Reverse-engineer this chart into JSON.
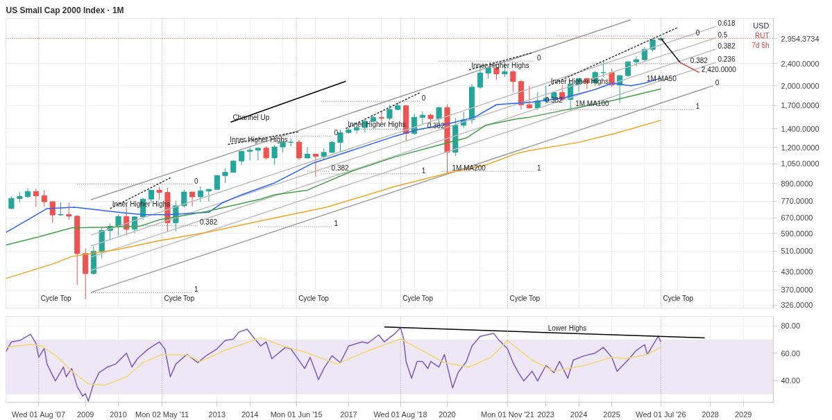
{
  "chart_data": [
    {
      "type": "candlestick",
      "title": "US Small Cap 2000 Index · 1M",
      "ylabel": "USD",
      "log": true,
      "grid": true,
      "tick_labels": "y",
      "xlim": [
        "2006-08",
        "2029-12"
      ],
      "xticks": [
        "2009",
        "2010",
        "2011",
        "2012",
        "2013",
        "2014",
        "2015",
        "2016",
        "2017",
        "2018",
        "2019",
        "2020",
        "2021",
        "2022",
        "2023",
        "2024",
        "2025",
        "2026",
        "2027",
        "2028",
        "2029"
      ],
      "ylim": [
        318,
        3490
      ],
      "yticks": [
        {
          "value": 326,
          "label": "326.0000"
        },
        {
          "value": 370,
          "label": "370.0000"
        },
        {
          "value": 430,
          "label": "430.0000"
        },
        {
          "value": 510,
          "label": "510.0000"
        },
        {
          "value": 590,
          "label": "590.0000"
        },
        {
          "value": 670,
          "label": "670.0000"
        },
        {
          "value": 770,
          "label": "770.0000"
        },
        {
          "value": 890,
          "label": "890.0000"
        },
        {
          "value": 1050,
          "label": "1,050.0000"
        },
        {
          "value": 1200,
          "label": "1,200.0000"
        },
        {
          "value": 1400,
          "label": "1,400.0000"
        },
        {
          "value": 1700,
          "label": "1,700.0000"
        },
        {
          "value": 2000,
          "label": "2,000.0000"
        },
        {
          "value": 2400,
          "label": "2,400.0000"
        }
      ],
      "x": [
        "2006-10",
        "2007-01",
        "2007-04",
        "2007-07",
        "2007-10",
        "2008-01",
        "2008-04",
        "2008-07",
        "2008-10",
        "2009-01",
        "2009-04",
        "2009-07",
        "2009-10",
        "2010-01",
        "2010-04",
        "2010-07",
        "2010-10",
        "2011-01",
        "2011-04",
        "2011-07",
        "2011-10",
        "2012-01",
        "2012-04",
        "2012-07",
        "2012-10",
        "2013-01",
        "2013-04",
        "2013-07",
        "2013-10",
        "2014-01",
        "2014-04",
        "2014-07",
        "2014-10",
        "2015-01",
        "2015-04",
        "2015-07",
        "2015-10",
        "2016-01",
        "2016-04",
        "2016-07",
        "2016-10",
        "2017-01",
        "2017-04",
        "2017-07",
        "2017-10",
        "2018-01",
        "2018-04",
        "2018-07",
        "2018-10",
        "2019-01",
        "2019-04",
        "2019-07",
        "2019-10",
        "2020-01",
        "2020-04",
        "2020-07",
        "2020-10",
        "2021-01",
        "2021-04",
        "2021-07",
        "2021-10",
        "2022-01",
        "2022-04",
        "2022-07",
        "2022-10",
        "2023-01",
        "2023-04",
        "2023-07",
        "2023-10",
        "2024-01",
        "2024-04",
        "2024-07",
        "2024-10",
        "2025-01",
        "2025-04",
        "2025-07",
        "2025-10",
        "2026-01",
        "2026-04",
        "2026-07"
      ],
      "ohlc": [
        [
          725,
          800,
          720,
          787
        ],
        [
          787,
          829,
          760,
          800
        ],
        [
          800,
          856,
          790,
          834
        ],
        [
          834,
          855,
          734,
          805
        ],
        [
          805,
          845,
          735,
          766
        ],
        [
          766,
          770,
          643,
          687
        ],
        [
          687,
          763,
          685,
          689
        ],
        [
          689,
          760,
          660,
          680
        ],
        [
          680,
          680,
          385,
          499
        ],
        [
          499,
          520,
          343,
          423
        ],
        [
          423,
          530,
          420,
          508
        ],
        [
          508,
          620,
          480,
          604
        ],
        [
          604,
          640,
          560,
          625
        ],
        [
          625,
          690,
          580,
          678
        ],
        [
          678,
          745,
          580,
          610
        ],
        [
          610,
          680,
          590,
          676
        ],
        [
          676,
          790,
          660,
          783
        ],
        [
          783,
          845,
          760,
          843
        ],
        [
          843,
          868,
          780,
          827
        ],
        [
          827,
          860,
          600,
          644
        ],
        [
          644,
          770,
          601,
          741
        ],
        [
          741,
          846,
          730,
          830
        ],
        [
          830,
          830,
          737,
          798
        ],
        [
          798,
          869,
          763,
          837
        ],
        [
          837,
          850,
          767,
          849
        ],
        [
          849,
          953,
          849,
          951
        ],
        [
          951,
          1010,
          895,
          977
        ],
        [
          977,
          1080,
          975,
          1073
        ],
        [
          1073,
          1165,
          1040,
          1163
        ],
        [
          1163,
          1213,
          1080,
          1173
        ],
        [
          1173,
          1195,
          1080,
          1193
        ],
        [
          1193,
          1213,
          1085,
          1101
        ],
        [
          1101,
          1221,
          1040,
          1205
        ],
        [
          1205,
          1266,
          1150,
          1253
        ],
        [
          1253,
          1296,
          1210,
          1254
        ],
        [
          1254,
          1275,
          1080,
          1100
        ],
        [
          1100,
          1205,
          1100,
          1136
        ],
        [
          1136,
          1140,
          943,
          1114
        ],
        [
          1114,
          1190,
          1080,
          1152
        ],
        [
          1152,
          1265,
          1150,
          1252
        ],
        [
          1252,
          1392,
          1156,
          1357
        ],
        [
          1357,
          1414,
          1345,
          1386
        ],
        [
          1386,
          1432,
          1345,
          1415
        ],
        [
          1415,
          1514,
          1356,
          1490
        ],
        [
          1490,
          1565,
          1480,
          1536
        ],
        [
          1536,
          1618,
          1464,
          1529
        ],
        [
          1529,
          1708,
          1500,
          1643
        ],
        [
          1643,
          1742,
          1630,
          1696
        ],
        [
          1696,
          1708,
          1267,
          1348
        ],
        [
          1348,
          1590,
          1330,
          1540
        ],
        [
          1540,
          1618,
          1450,
          1567
        ],
        [
          1567,
          1590,
          1450,
          1523
        ],
        [
          1523,
          1680,
          1460,
          1668
        ],
        [
          1668,
          1715,
          966,
          1153
        ],
        [
          1153,
          1532,
          1120,
          1441
        ],
        [
          1441,
          1606,
          1410,
          1508
        ],
        [
          1508,
          2030,
          1460,
          1975
        ],
        [
          1975,
          2360,
          1950,
          2221
        ],
        [
          2221,
          2360,
          2120,
          2311
        ],
        [
          2311,
          2330,
          2100,
          2204
        ],
        [
          2204,
          2458,
          2150,
          2245
        ],
        [
          2245,
          2272,
          1900,
          2070
        ],
        [
          2070,
          2100,
          1641,
          1708
        ],
        [
          1708,
          2000,
          1650,
          1665
        ],
        [
          1665,
          1900,
          1640,
          1761
        ],
        [
          1761,
          2001,
          1718,
          1802
        ],
        [
          1802,
          1900,
          1720,
          1889
        ],
        [
          1889,
          2013,
          1760,
          1785
        ],
        [
          1785,
          2087,
          1633,
          2027
        ],
        [
          2027,
          2124,
          1900,
          2124
        ],
        [
          2124,
          2125,
          1942,
          2048
        ],
        [
          2048,
          2264,
          1995,
          2230
        ],
        [
          2230,
          2466,
          2150,
          2230
        ],
        [
          2230,
          2300,
          1990,
          2011
        ],
        [
          2011,
          2180,
          1732,
          2175
        ],
        [
          2175,
          2450,
          2150,
          2437
        ],
        [
          2437,
          2550,
          2350,
          2480
        ],
        [
          2480,
          2750,
          2450,
          2700
        ],
        [
          2700,
          2960,
          2650,
          2920
        ],
        [
          2920,
          2980,
          2900,
          2954
        ]
      ],
      "series": [
        {
          "type": "line",
          "color": "#9e9e9e",
          "x": [
            "2009-03",
            "2025-08"
          ],
          "values": [
            779,
            3450
          ]
        },
        {
          "type": "line",
          "color": "#9e9e9e",
          "x": [
            "2009-03",
            "2028-02"
          ],
          "values": [
            362,
            2000
          ]
        },
        {
          "type": "line",
          "color": "#bdbdbd",
          "x": [
            "2009-03",
            "2028-03"
          ],
          "values": [
            434,
            2425
          ]
        },
        {
          "type": "line",
          "color": "#bdbdbd",
          "x": [
            "2009-03",
            "2028-03"
          ],
          "values": [
            485,
            2705
          ]
        },
        {
          "type": "line",
          "color": "#bdbdbd",
          "x": [
            "2009-03",
            "2028-03"
          ],
          "values": [
            531,
            2971
          ]
        },
        {
          "type": "line",
          "color": "#bdbdbd",
          "x": [
            "2009-03",
            "2028-03"
          ],
          "values": [
            581,
            3262
          ]
        },
        {
          "type": "line",
          "color": "#9e9e9e",
          "line_style": "dotted",
          "x": [
            "2008-10",
            "2012-04"
          ],
          "values": [
            887,
            887
          ]
        },
        {
          "type": "line",
          "color": "#9e9e9e",
          "line_style": "dotted",
          "x": [
            "2010-01",
            "2012-06"
          ],
          "values": [
            629,
            629
          ]
        },
        {
          "type": "line",
          "color": "#9e9e9e",
          "line_style": "dotted",
          "x": [
            "2009-03",
            "2012-04"
          ],
          "values": [
            362,
            362
          ]
        },
        {
          "type": "line",
          "color": "#9e9e9e",
          "line_style": "dotted",
          "x": [
            "2014-05",
            "2016-07"
          ],
          "values": [
            1318,
            1318
          ]
        },
        {
          "type": "line",
          "color": "#9e9e9e",
          "line_style": "dotted",
          "x": [
            "2015-10",
            "2016-06"
          ],
          "values": [
            985,
            985
          ]
        },
        {
          "type": "line",
          "color": "#9e9e9e",
          "line_style": "dotted",
          "x": [
            "2014-04",
            "2016-07"
          ],
          "values": [
            623,
            623
          ]
        },
        {
          "type": "line",
          "color": "#9e9e9e",
          "line_style": "dotted",
          "x": [
            "2016-03",
            "2019-03"
          ],
          "values": [
            1756,
            1756
          ]
        },
        {
          "type": "line",
          "color": "#9e9e9e",
          "line_style": "dotted",
          "x": [
            "2017-04",
            "2019-05"
          ],
          "values": [
            1396,
            1396
          ]
        },
        {
          "type": "line",
          "color": "#9e9e9e",
          "line_style": "dotted",
          "x": [
            "2016-03",
            "2019-03"
          ],
          "values": [
            965,
            965
          ]
        },
        {
          "type": "line",
          "color": "#9e9e9e",
          "line_style": "dotted",
          "x": [
            "2019-10",
            "2022-09"
          ],
          "values": [
            2451,
            2451
          ]
        },
        {
          "type": "line",
          "color": "#9e9e9e",
          "line_style": "dotted",
          "x": [
            "2021-11",
            "2022-12"
          ],
          "values": [
            1730,
            1730
          ]
        },
        {
          "type": "line",
          "color": "#9e9e9e",
          "line_style": "dotted",
          "x": [
            "2019-11",
            "2022-09"
          ],
          "values": [
            985,
            985
          ]
        },
        {
          "type": "line",
          "color": "#9e9e9e",
          "line_style": "dotted",
          "x": [
            "2023-05",
            "2027-07"
          ],
          "values": [
            3017,
            3017
          ]
        },
        {
          "type": "line",
          "color": "#9e9e9e",
          "line_style": "dotted",
          "x": [
            "2024-06",
            "2027-05"
          ],
          "values": [
            2400,
            2400
          ]
        },
        {
          "type": "line",
          "color": "#9e9e9e",
          "line_style": "dotted",
          "x": [
            "2023-03",
            "2027-07"
          ],
          "values": [
            1641,
            1641
          ]
        },
        {
          "type": "line",
          "color": "#333333",
          "line_style": "dashed",
          "x": [
            "2009-10",
            "2011-08"
          ],
          "values": [
            724,
            934
          ]
        },
        {
          "type": "line",
          "color": "#333333",
          "line_style": "dashed",
          "x": [
            "2013-05",
            "2015-07"
          ],
          "values": [
            1230,
            1367
          ]
        },
        {
          "type": "line",
          "color": "#333333",
          "line_style": "dashed",
          "x": [
            "2016-12",
            "2019-03"
          ],
          "values": [
            1403,
            1886
          ]
        },
        {
          "type": "line",
          "color": "#333333",
          "line_style": "dashed",
          "x": [
            "2020-09",
            "2022-08"
          ],
          "values": [
            2280,
            2625
          ]
        },
        {
          "type": "line",
          "color": "#333333",
          "line_style": "dashed",
          "x": [
            "2023-02",
            "2027-01"
          ],
          "values": [
            2000,
            3233
          ]
        },
        {
          "type": "line",
          "color": "#000000",
          "x": [
            "2013-06",
            "2016-12"
          ],
          "values": [
            1479,
            2074
          ]
        },
        {
          "type": "line",
          "color": "#000000",
          "x": [
            "2026-07",
            "2027-02"
          ],
          "values": [
            2954,
            2420
          ]
        },
        {
          "type": "line",
          "color": "#e53935",
          "x": [
            "2027-02",
            "2027-09"
          ],
          "values": [
            2420,
            2230
          ]
        },
        {
          "type": "line",
          "color": "#2962ff",
          "x": [
            "2006-08",
            "2007-04",
            "2007-11",
            "2008-09",
            "2010-01",
            "2010-10",
            "2011-07",
            "2012-10",
            "2013-03",
            "2013-10",
            "2014-10",
            "2015-12",
            "2017-02",
            "2018-06",
            "2019-02",
            "2020-01",
            "2020-11",
            "2021-07",
            "2022-08",
            "2023-07",
            "2024-07",
            "2025-01",
            "2025-08",
            "2026-01",
            "2026-07"
          ],
          "values": [
            594,
            660,
            724,
            732,
            702,
            688,
            688,
            702,
            759,
            812,
            895,
            1054,
            1170,
            1318,
            1389,
            1456,
            1541,
            1710,
            1747,
            1803,
            1938,
            2043,
            2000,
            2043,
            2129
          ]
        },
        {
          "type": "line",
          "color": "#43a047",
          "x": [
            "2006-08",
            "2007-08",
            "2008-08",
            "2009-07",
            "2010-09",
            "2011-04",
            "2012-09",
            "2014-05",
            "2014-10",
            "2015-10",
            "2017-02",
            "2018-06",
            "2019-11",
            "2020-08",
            "2021-03",
            "2022-02",
            "2022-07",
            "2023-11",
            "2024-11",
            "2026-07"
          ],
          "values": [
            536,
            573,
            617,
            620,
            626,
            660,
            706,
            783,
            812,
            843,
            985,
            1110,
            1232,
            1298,
            1441,
            1518,
            1541,
            1658,
            1747,
            1949
          ]
        },
        {
          "type": "line",
          "color": "#f7a21b",
          "x": [
            "2006-08",
            "2008-01",
            "2008-08",
            "2010-01",
            "2011-04",
            "2012-09",
            "2014-10",
            "2016-05",
            "2018-06",
            "2020-02",
            "2021-03",
            "2022-02",
            "2022-07",
            "2024-01",
            "2025-03",
            "2026-07"
          ],
          "values": [
            406,
            458,
            487,
            517,
            555,
            594,
            670,
            732,
            869,
            975,
            1037,
            1139,
            1170,
            1252,
            1353,
            1502
          ]
        }
      ],
      "ref_lines": [
        {
          "axis": "y",
          "value": 2954.3734,
          "label": "2,954.3734",
          "color": "#e53935",
          "line_style": "dotted"
        },
        {
          "axis": "x",
          "value": "2007-08-01",
          "color": "#9e9e9e",
          "line_style": "dotted"
        },
        {
          "axis": "x",
          "value": "2011-05-02",
          "color": "#9e9e9e",
          "line_style": "dotted"
        },
        {
          "axis": "x",
          "value": "2015-06-01",
          "color": "#9e9e9e",
          "line_style": "dotted"
        },
        {
          "axis": "x",
          "value": "2018-08-01",
          "color": "#9e9e9e",
          "line_style": "dotted"
        },
        {
          "axis": "x",
          "value": "2021-11-01",
          "color": "#9e9e9e",
          "line_style": "dotted"
        },
        {
          "axis": "x",
          "value": "2026-07-01",
          "color": "#9e9e9e",
          "line_style": "dotted"
        }
      ],
      "annotations": [
        "RUT",
        "7d 5h",
        {
          "text": "2,420.0000",
          "x": "2027-09",
          "y": 2230
        },
        {
          "text": "Channel Up",
          "x": "2013-06",
          "y": 1479
        },
        {
          "text": "Inner Higher Highs",
          "x": "2009-10",
          "y": 724
        },
        {
          "text": "Inner Higher Highs",
          "x": "2013-05",
          "y": 1230
        },
        {
          "text": "Inner Higher Highs",
          "x": "2016-12",
          "y": 1403
        },
        {
          "text": "Inner Higher Highs",
          "x": "2020-09",
          "y": 2280
        },
        {
          "text": "Inner Higher Highs",
          "x": "2023-02",
          "y": 2000
        },
        {
          "text": "0",
          "x": "2012-04",
          "y": 887
        },
        {
          "text": "0.382",
          "x": "2012-06",
          "y": 629
        },
        {
          "text": "1",
          "x": "2012-04",
          "y": 362
        },
        {
          "text": "0",
          "x": "2016-07",
          "y": 1318
        },
        {
          "text": "0.382",
          "x": "2016-06",
          "y": 985
        },
        {
          "text": "1",
          "x": "2016-07",
          "y": 623
        },
        {
          "text": "0",
          "x": "2019-03",
          "y": 1756
        },
        {
          "text": "0.382",
          "x": "2019-05",
          "y": 1396
        },
        {
          "text": "1",
          "x": "2019-03",
          "y": 965
        },
        {
          "text": "0",
          "x": "2022-09",
          "y": 2451
        },
        {
          "text": "0.382",
          "x": "2022-12",
          "y": 1730
        },
        {
          "text": "1",
          "x": "2022-09",
          "y": 985
        },
        {
          "text": "0",
          "x": "2027-07",
          "y": 3017
        },
        {
          "text": "0.382",
          "x": "2027-05",
          "y": 2400
        },
        {
          "text": "1",
          "x": "2027-07",
          "y": 1641
        },
        {
          "text": "0.618",
          "x": "2028-03",
          "y": 3262
        },
        {
          "text": "0.5",
          "x": "2028-03",
          "y": 2971
        },
        {
          "text": "0.382",
          "x": "2028-03",
          "y": 2705
        },
        {
          "text": "0.236",
          "x": "2028-03",
          "y": 2425
        },
        {
          "text": "0",
          "x": "2028-02",
          "y": 2000
        },
        {
          "text": "1M MA200",
          "x": "2020-02",
          "y": 975
        },
        {
          "text": "1M MA100",
          "x": "2023-11",
          "y": 1658
        },
        {
          "text": "1M MA50",
          "x": "2026-01",
          "y": 2043
        },
        {
          "text": "Cycle Top",
          "x": "2007-08",
          "y": 332
        },
        {
          "text": "Cycle Top",
          "x": "2011-05",
          "y": 332
        },
        {
          "text": "Cycle Top",
          "x": "2015-06",
          "y": 332
        },
        {
          "text": "Cycle Top",
          "x": "2018-08",
          "y": 332
        },
        {
          "text": "Cycle Top",
          "x": "2021-11",
          "y": 332
        },
        {
          "text": "Cycle Top",
          "x": "2026-07",
          "y": 332
        }
      ]
    },
    {
      "type": "line",
      "grid": true,
      "xlim": [
        "2006-08",
        "2029-12"
      ],
      "xticks": [
        "2009",
        "2010",
        "2013",
        "2014",
        "2017",
        "2020",
        "2023",
        "2024",
        "2025",
        "2028",
        "2029"
      ],
      "ylim": [
        24,
        87
      ],
      "yticks": [
        {
          "value": 40,
          "label": "40.00"
        },
        {
          "value": 60,
          "label": "60.00"
        },
        {
          "value": 80,
          "label": "80.00"
        }
      ],
      "bands": [
        {
          "axis": "y",
          "from": 30,
          "to": 70,
          "color": "#ede7f6"
        }
      ],
      "series": [
        {
          "type": "line",
          "color": "#7e57c2",
          "x": [
            "2006-08",
            "2006-10",
            "2007-01",
            "2007-05",
            "2007-07",
            "2007-08",
            "2007-10",
            "2007-11",
            "2008-02",
            "2008-05",
            "2008-06",
            "2008-08",
            "2008-10",
            "2008-12",
            "2009-01",
            "2009-02",
            "2009-04",
            "2009-06",
            "2009-09",
            "2009-12",
            "2010-04",
            "2010-06",
            "2010-08",
            "2010-12",
            "2011-04",
            "2011-06",
            "2011-08",
            "2011-10",
            "2012-02",
            "2012-06",
            "2012-09",
            "2013-01",
            "2013-04",
            "2013-07",
            "2013-09",
            "2013-12",
            "2014-02",
            "2014-05",
            "2014-07",
            "2014-09",
            "2015-02",
            "2015-04",
            "2015-09",
            "2015-11",
            "2016-02",
            "2016-04",
            "2016-07",
            "2016-10",
            "2017-01",
            "2017-06",
            "2017-08",
            "2017-12",
            "2018-02",
            "2018-06",
            "2018-08",
            "2018-09",
            "2018-10",
            "2018-12",
            "2019-02",
            "2019-04",
            "2019-06",
            "2019-07",
            "2019-10",
            "2019-12",
            "2020-03",
            "2020-05",
            "2020-08",
            "2020-10",
            "2021-01",
            "2021-06",
            "2021-08",
            "2021-11",
            "2022-01",
            "2022-03",
            "2022-05",
            "2022-08",
            "2022-10",
            "2023-01",
            "2023-04",
            "2023-06",
            "2023-09",
            "2023-11",
            "2024-03",
            "2024-07",
            "2024-10",
            "2025-01",
            "2025-03",
            "2025-07",
            "2025-10",
            "2026-01",
            "2026-02",
            "2026-06",
            "2026-07"
          ],
          "values": [
            61.2,
            68.3,
            69.3,
            73.9,
            67.3,
            57,
            63.7,
            52,
            39.7,
            49.9,
            42.7,
            48.8,
            35.5,
            28.5,
            30.4,
            24.8,
            37.6,
            45.8,
            49.9,
            52,
            60.1,
            49.9,
            56,
            63.2,
            68.3,
            63.2,
            42.7,
            52,
            59.1,
            53.1,
            58.1,
            63.2,
            69.3,
            70.4,
            75.5,
            77.6,
            72.4,
            65.3,
            68.3,
            56,
            64.3,
            63.2,
            48.8,
            57,
            40.6,
            48.8,
            58.1,
            53.1,
            65.3,
            68.3,
            67.3,
            73.4,
            68.3,
            74.5,
            78.7,
            71.4,
            54,
            41.7,
            54,
            54,
            48.8,
            54,
            49.9,
            59.1,
            34.5,
            45.8,
            54,
            65.3,
            72.4,
            74.5,
            69.3,
            63.2,
            53.1,
            45.8,
            39.7,
            46.8,
            39.7,
            51,
            45.8,
            54,
            41.7,
            55,
            58.1,
            60.1,
            64.3,
            57,
            46.8,
            55,
            62.1,
            66.3,
            59.1,
            72.4,
            68.3
          ]
        },
        {
          "type": "line",
          "color": "#f5d76e",
          "x": [
            "2006-08",
            "2007-05",
            "2007-09",
            "2008-03",
            "2008-08",
            "2009-02",
            "2009-08",
            "2010-04",
            "2010-10",
            "2011-05",
            "2012-02",
            "2012-07",
            "2013-04",
            "2014-05",
            "2015-01",
            "2015-09",
            "2016-09",
            "2017-06",
            "2018-08",
            "2019-12",
            "2020-09",
            "2021-05",
            "2021-11",
            "2022-08",
            "2023-04",
            "2024-03",
            "2025-01",
            "2025-06",
            "2026-02",
            "2026-07"
          ],
          "values": [
            64.3,
            66.4,
            65.3,
            57,
            46.8,
            37.6,
            36.5,
            42.7,
            53.1,
            59.1,
            58.7,
            54,
            62.1,
            71.4,
            65.3,
            61,
            52,
            60.1,
            70.5,
            53.1,
            49.9,
            57,
            69.3,
            55,
            46.8,
            51,
            57,
            56,
            59.1,
            64.3
          ]
        },
        {
          "type": "line",
          "color": "#000000",
          "x": [
            "2018-02",
            "2027-11"
          ],
          "values": [
            79.2,
            71.2
          ]
        }
      ],
      "ref_lines": [
        {
          "axis": "x",
          "value": "2007-08-01",
          "label": "Wed 01 Aug '07",
          "color": "#9e9e9e",
          "line_style": "dotted"
        },
        {
          "axis": "x",
          "value": "2011-05-02",
          "label": "Mon 02 May '11",
          "color": "#9e9e9e",
          "line_style": "dotted"
        },
        {
          "axis": "x",
          "value": "2015-06-01",
          "label": "Mon 01 Jun '15",
          "color": "#9e9e9e",
          "line_style": "dotted"
        },
        {
          "axis": "x",
          "value": "2018-08-01",
          "label": "Wed 01 Aug '18",
          "color": "#9e9e9e",
          "line_style": "dotted"
        },
        {
          "axis": "x",
          "value": "2021-11-01",
          "label": "Mon 01 Nov '21",
          "color": "#9e9e9e",
          "line_style": "dotted"
        },
        {
          "axis": "x",
          "value": "2026-07-01",
          "label": "Wed 01 Jul '26",
          "color": "#9e9e9e",
          "line_style": "dotted"
        }
      ],
      "annotations": [
        {
          "text": "Lower Highs",
          "x": "2023-01",
          "y": 75.2
        }
      ]
    }
  ]
}
